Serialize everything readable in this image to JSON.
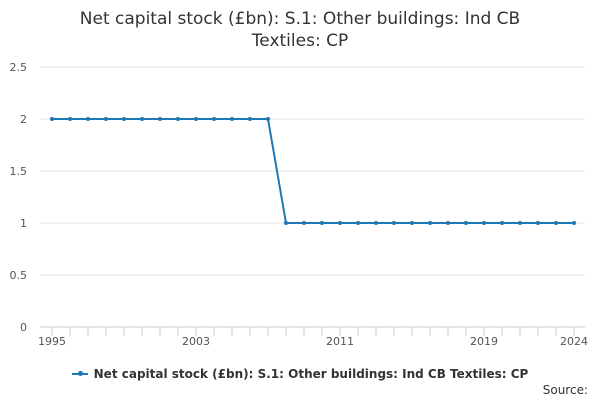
{
  "chart_data": {
    "type": "line",
    "title_lines": [
      "Net capital stock (£bn): S.1: Other buildings: Ind CB",
      "Textiles: CP"
    ],
    "x": [
      1995,
      1996,
      1997,
      1998,
      1999,
      2000,
      2001,
      2002,
      2003,
      2004,
      2005,
      2006,
      2007,
      2008,
      2009,
      2010,
      2011,
      2012,
      2013,
      2014,
      2015,
      2016,
      2017,
      2018,
      2019,
      2020,
      2021,
      2022,
      2023,
      2024
    ],
    "series": [
      {
        "name": "Net capital stock (£bn): S.1: Other buildings: Ind CB Textiles: CP",
        "color": "#1f77b4",
        "values": [
          2,
          2,
          2,
          2,
          2,
          2,
          2,
          2,
          2,
          2,
          2,
          2,
          2,
          1,
          1,
          1,
          1,
          1,
          1,
          1,
          1,
          1,
          1,
          1,
          1,
          1,
          1,
          1,
          1,
          1
        ]
      }
    ],
    "y_ticks": [
      "0",
      "0.5",
      "1",
      "1.5",
      "2",
      "2.5"
    ],
    "y_tick_values": [
      0,
      0.5,
      1,
      1.5,
      2,
      2.5
    ],
    "x_tick_labels": [
      "1995",
      "2003",
      "2011",
      "2019",
      "2024"
    ],
    "x_tick_values": [
      1995,
      2003,
      2011,
      2019,
      2024
    ],
    "ylim": [
      0,
      2.5
    ],
    "xlim": [
      1995,
      2024
    ],
    "grid": "horizontal",
    "legend_position": "bottom"
  },
  "source_label": "Source:"
}
